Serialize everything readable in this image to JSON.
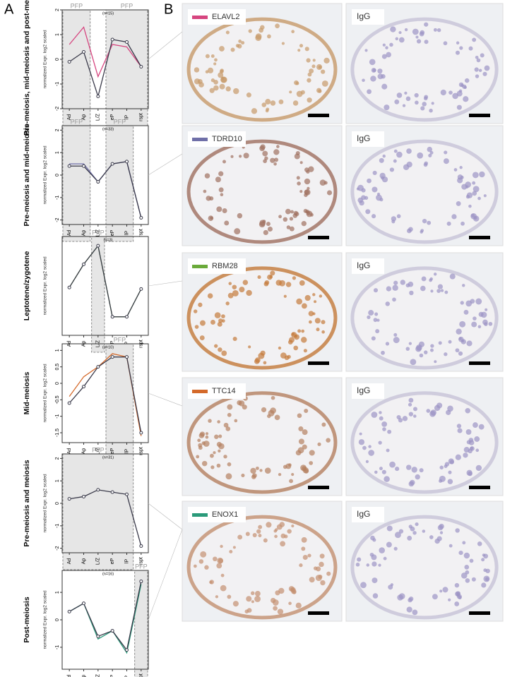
{
  "panel_labels": [
    "A",
    "B"
  ],
  "chart_data": [
    {
      "type": "line",
      "title": "Pre-meiosis, mid-meiosis and post-meiosis",
      "annotation": "(n=15)",
      "ylabel": "normalized Expr. log2 scaled",
      "categories": [
        "Ad",
        "Ap",
        "L/Z",
        "eP",
        "lP",
        "rspt"
      ],
      "ylim": [
        -2,
        2
      ],
      "yticks": [
        -2,
        -1,
        0,
        1,
        2
      ],
      "regions": [
        {
          "label": "PFP",
          "from": "Ad",
          "to": "Ap"
        },
        {
          "label": "PFP",
          "from": "eP",
          "to": "rspt"
        }
      ],
      "series": [
        {
          "color": "#d6457f",
          "values": [
            0.6,
            1.3,
            -0.7,
            0.6,
            0.5,
            -0.3
          ]
        },
        {
          "color": "#3a3a4a",
          "values": [
            -0.1,
            0.3,
            -1.5,
            0.8,
            0.7,
            -0.3
          ]
        }
      ]
    },
    {
      "type": "line",
      "title": "Pre-meiosis and mid-meiosis",
      "annotation": "(n=33)",
      "ylabel": "normalized Expr. log2 scaled",
      "categories": [
        "Ad",
        "Ap",
        "L/Z",
        "eP",
        "lP",
        "rspt"
      ],
      "ylim": [
        -2.2,
        2.2
      ],
      "yticks": [
        -2,
        -1,
        0,
        1,
        2
      ],
      "regions": [
        {
          "label": "PFP",
          "from": "Ad",
          "to": "Ap"
        },
        {
          "label": "PFP",
          "from": "eP",
          "to": "lP"
        }
      ],
      "series": [
        {
          "color": "#6f6fa8",
          "values": [
            0.5,
            0.5,
            -0.3,
            0.5,
            0.6,
            -1.9
          ]
        },
        {
          "color": "#3a3a4a",
          "values": [
            0.4,
            0.4,
            -0.3,
            0.5,
            0.6,
            -1.9
          ]
        }
      ]
    },
    {
      "type": "line",
      "title": "Leptotene/zygotene",
      "annotation": "(n=3)",
      "ylabel": "normalized Expr. log2 scaled",
      "categories": [
        "Ad",
        "Ap",
        "L/Z",
        "eP",
        "lP",
        "rspt"
      ],
      "ylim": [
        -1.6,
        1.6
      ],
      "yticks": [],
      "regions": [
        {
          "label": "PFP",
          "from": "L/Z",
          "to": "L/Z"
        }
      ],
      "series": [
        {
          "color": "#6aaa3a",
          "values": [
            -0.05,
            0.7,
            1.3,
            -1.0,
            -1.0,
            -0.1
          ]
        },
        {
          "color": "#3a3a4a",
          "values": [
            -0.05,
            0.7,
            1.3,
            -1.0,
            -1.0,
            -0.1
          ]
        }
      ]
    },
    {
      "type": "line",
      "title": "Mid-meiosis",
      "annotation": "(n=10)",
      "ylabel": "normalized Expr. log2 scaled",
      "categories": [
        "Ad",
        "Ap",
        "L/Z",
        "eP",
        "lP",
        "rspt"
      ],
      "ylim": [
        -1.8,
        1.2
      ],
      "yticks": [
        -1.5,
        -1,
        -0.5,
        0,
        0.5,
        1
      ],
      "regions": [
        {
          "label": "PFP",
          "from": "eP",
          "to": "lP"
        }
      ],
      "series": [
        {
          "color": "#d4692a",
          "values": [
            -0.4,
            0.2,
            0.5,
            0.9,
            0.8,
            -1.6
          ]
        },
        {
          "color": "#3a3a4a",
          "values": [
            -0.6,
            -0.1,
            0.5,
            0.8,
            0.8,
            -1.5
          ]
        }
      ]
    },
    {
      "type": "line",
      "title": "Pre-meiosis and meiosis",
      "annotation": "(n=31)",
      "ylabel": "normalized Expr. log2 scaled",
      "categories": [
        "Ad",
        "Ap",
        "L/Z",
        "eP",
        "lP",
        "rspt"
      ],
      "ylim": [
        -2.2,
        2.2
      ],
      "yticks": [
        -2,
        -1,
        0,
        1,
        2
      ],
      "regions": [
        {
          "label": "PFP",
          "from": "Ad",
          "to": "lP"
        }
      ],
      "series": [
        {
          "color": "#3a3a4a",
          "values": [
            0.2,
            0.3,
            0.6,
            0.5,
            0.4,
            -1.9
          ]
        }
      ]
    },
    {
      "type": "line",
      "title": "Post-meiosis",
      "annotation": "(n=16)",
      "ylabel": "normalized Expr. log2 scaled",
      "categories": [
        "Ad",
        "Ap",
        "L/Z",
        "eP",
        "lP",
        "rspt"
      ],
      "ylim": [
        -1.8,
        1.8
      ],
      "yticks": [
        -1,
        0,
        1
      ],
      "regions": [
        {
          "label": "PFP",
          "from": "rspt",
          "to": "rspt"
        }
      ],
      "series": [
        {
          "color": "#2a9a7a",
          "values": [
            0.3,
            0.6,
            -0.7,
            -0.4,
            -1.2,
            1.3
          ]
        },
        {
          "color": "#3a3a4a",
          "values": [
            0.3,
            0.6,
            -0.6,
            -0.4,
            -1.1,
            1.4
          ]
        }
      ]
    }
  ],
  "panel_b": [
    {
      "gene": "ELAVL2",
      "color": "#d6457f",
      "control": "IgG"
    },
    {
      "gene": "TDRD10",
      "color": "#6f6fa8",
      "control": "IgG"
    },
    {
      "gene": "RBM28",
      "color": "#6aaa3a",
      "control": "IgG"
    },
    {
      "gene": "TTC14",
      "color": "#d4692a",
      "control": "IgG"
    },
    {
      "gene": "ENOX1",
      "color": "#2a9a7a",
      "control": "IgG"
    }
  ]
}
